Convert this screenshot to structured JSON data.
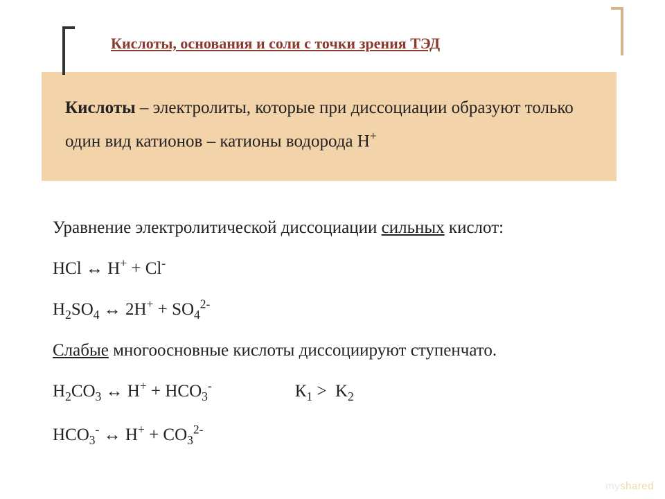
{
  "title": "Кислоты, основания и соли с точки зрения ТЭД",
  "definition": {
    "term": "Кислоты",
    "rest": " – электролиты, которые при диссоциации образуют только один вид катионов – катионы водорода Н",
    "sup": "+"
  },
  "para1_a": "Уравнение электролитической диссоциации ",
  "para1_u": "сильных",
  "para1_b": " кислот:",
  "eq1": "HCl ↔ H⁺ + Cl⁻",
  "eq2": "H₂SO₄ ↔ 2H⁺ + SO₄²⁻",
  "para2_u": "Слабые",
  "para2_b": " многоосновные кислоты диссоциируют ступенчато.",
  "eq3": "H₂CO₃ ↔ H⁺ + HCO₃⁻",
  "kcomp": "К₁ >  K₂",
  "eq4": "HCO₃⁻ ↔ H⁺ + CO₃²⁻",
  "watermark_a": "my",
  "watermark_b": "shared"
}
